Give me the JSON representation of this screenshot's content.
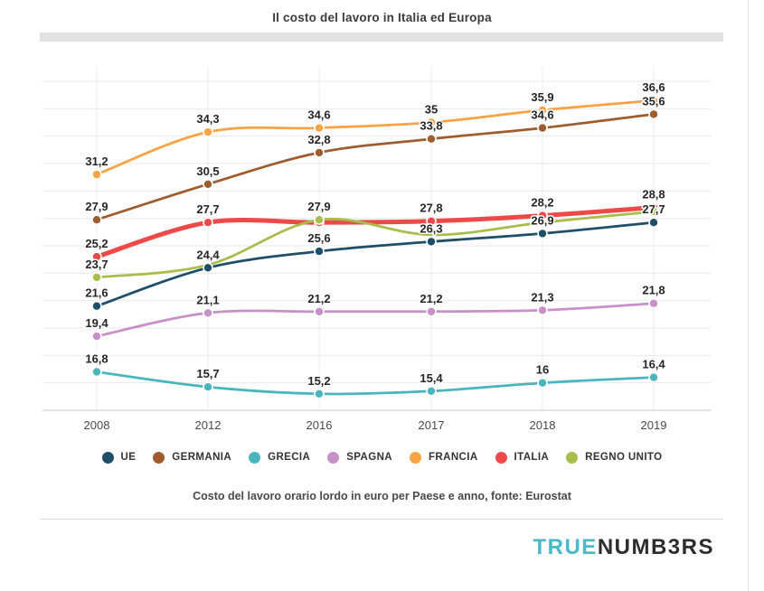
{
  "title": "Il costo del lavoro in Italia ed Europa",
  "footnote": "Costo del lavoro orario lordo in euro per Paese e anno, fonte: Eurostat",
  "logo": {
    "part1": "TRUE",
    "part2": "NUMB3RS",
    "part1_color": "#4bb9c8",
    "part2_color": "#2d2d2d"
  },
  "chart_data": {
    "type": "line",
    "title": "Il costo del lavoro in Italia ed Europa",
    "x_categories": [
      "2008",
      "2012",
      "2016",
      "2017",
      "2018",
      "2019"
    ],
    "ylabel": "",
    "xlabel": "",
    "ylim": [
      14,
      38
    ],
    "grid_step": 2,
    "grid": true,
    "legend_position": "bottom",
    "decimal_separator": ",",
    "series": [
      {
        "name": "UE",
        "color": "#1f4f68",
        "values": [
          21.6,
          24.4,
          25.6,
          26.3,
          26.9,
          27.7
        ]
      },
      {
        "name": "GERMANIA",
        "color": "#9f5c2e",
        "values": [
          27.9,
          30.5,
          32.8,
          33.8,
          34.6,
          35.6
        ]
      },
      {
        "name": "GRECIA",
        "color": "#49b6bf",
        "values": [
          16.8,
          15.7,
          15.2,
          15.4,
          16,
          16.4
        ]
      },
      {
        "name": "SPAGNA",
        "color": "#c890c8",
        "values": [
          19.4,
          21.1,
          21.2,
          21.2,
          21.3,
          21.8
        ]
      },
      {
        "name": "FRANCIA",
        "color": "#f8a444",
        "values": [
          31.2,
          34.3,
          34.6,
          35,
          35.9,
          36.6
        ]
      },
      {
        "name": "ITALIA",
        "color": "#ee4949",
        "values": [
          25.2,
          27.7,
          27.7,
          27.8,
          28.2,
          28.8
        ],
        "thick": true,
        "label_mask": [
          1,
          1,
          0,
          1,
          1,
          1
        ]
      },
      {
        "name": "REGNO UNITO",
        "color": "#a6bf4b",
        "values": [
          23.7,
          24.6,
          27.9,
          26.8,
          27.7,
          28.5
        ],
        "label_mask": [
          1,
          0,
          1,
          0,
          0,
          0
        ],
        "dot_mask": [
          1,
          0,
          1,
          0,
          0,
          1
        ]
      }
    ]
  }
}
